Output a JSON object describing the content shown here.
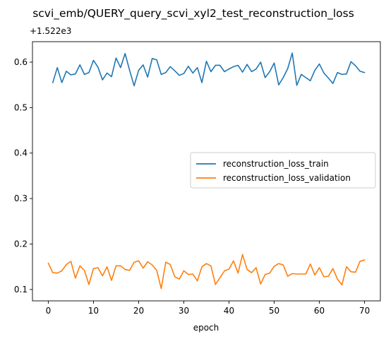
{
  "chart_data": {
    "type": "line",
    "title": "scvi_emb/QUERY_query_scvi_xyl2_test_reconstruction_loss",
    "xlabel": "epoch",
    "ylabel": "",
    "offset_label": "+1.522e3",
    "offset_value": 1522,
    "xlim": [
      -3.5,
      73.5
    ],
    "ylim": [
      0.075,
      0.645
    ],
    "xticks": [
      0,
      10,
      20,
      30,
      40,
      50,
      60,
      70
    ],
    "yticks": [
      0.1,
      0.2,
      0.3,
      0.4,
      0.5,
      0.6
    ],
    "ytick_labels": [
      "0.1",
      "0.2",
      "0.3",
      "0.4",
      "0.5",
      "0.6"
    ],
    "grid": false,
    "legend_position": "center-right",
    "series": [
      {
        "name": "reconstruction_loss_train",
        "color": "#1f77b4",
        "x": [
          1,
          2,
          3,
          4,
          5,
          6,
          7,
          8,
          9,
          10,
          11,
          12,
          13,
          14,
          15,
          16,
          17,
          18,
          19,
          20,
          21,
          22,
          23,
          24,
          25,
          26,
          27,
          28,
          29,
          30,
          31,
          32,
          33,
          34,
          35,
          36,
          37,
          38,
          39,
          40,
          41,
          42,
          43,
          44,
          45,
          46,
          47,
          48,
          49,
          50,
          51,
          52,
          53,
          54,
          55,
          56,
          57,
          58,
          59,
          60,
          61,
          62,
          63,
          64,
          65,
          66,
          67,
          68,
          69,
          70
        ],
        "values": [
          0.555,
          0.588,
          0.555,
          0.58,
          0.572,
          0.574,
          0.594,
          0.573,
          0.577,
          0.604,
          0.589,
          0.561,
          0.576,
          0.568,
          0.609,
          0.588,
          0.619,
          0.582,
          0.548,
          0.582,
          0.594,
          0.567,
          0.608,
          0.605,
          0.573,
          0.577,
          0.59,
          0.581,
          0.571,
          0.575,
          0.591,
          0.576,
          0.588,
          0.555,
          0.602,
          0.579,
          0.593,
          0.593,
          0.579,
          0.585,
          0.59,
          0.593,
          0.578,
          0.595,
          0.579,
          0.585,
          0.6,
          0.566,
          0.579,
          0.598,
          0.55,
          0.566,
          0.586,
          0.62,
          0.549,
          0.573,
          0.566,
          0.559,
          0.582,
          0.596,
          0.576,
          0.565,
          0.553,
          0.577,
          0.573,
          0.574,
          0.601,
          0.592,
          0.58,
          0.577
        ]
      },
      {
        "name": "reconstruction_loss_validation",
        "color": "#ff7f0e",
        "x": [
          0,
          1,
          2,
          3,
          4,
          5,
          6,
          7,
          8,
          9,
          10,
          11,
          12,
          13,
          14,
          15,
          16,
          17,
          18,
          19,
          20,
          21,
          22,
          23,
          24,
          25,
          26,
          27,
          28,
          29,
          30,
          31,
          32,
          33,
          34,
          35,
          36,
          37,
          38,
          39,
          40,
          41,
          42,
          43,
          44,
          45,
          46,
          47,
          48,
          49,
          50,
          51,
          52,
          53,
          54,
          55,
          56,
          57,
          58,
          59,
          60,
          61,
          62,
          63,
          64,
          65,
          66,
          67,
          68,
          69,
          70
        ],
        "values": [
          0.158,
          0.137,
          0.136,
          0.141,
          0.155,
          0.162,
          0.125,
          0.152,
          0.142,
          0.111,
          0.146,
          0.148,
          0.13,
          0.15,
          0.12,
          0.152,
          0.152,
          0.144,
          0.142,
          0.16,
          0.163,
          0.147,
          0.161,
          0.154,
          0.142,
          0.102,
          0.16,
          0.155,
          0.128,
          0.123,
          0.141,
          0.133,
          0.134,
          0.119,
          0.15,
          0.157,
          0.152,
          0.111,
          0.126,
          0.141,
          0.145,
          0.163,
          0.136,
          0.177,
          0.144,
          0.137,
          0.148,
          0.112,
          0.133,
          0.136,
          0.151,
          0.157,
          0.154,
          0.129,
          0.135,
          0.134,
          0.134,
          0.134,
          0.156,
          0.132,
          0.148,
          0.128,
          0.129,
          0.146,
          0.123,
          0.11,
          0.15,
          0.139,
          0.138,
          0.162,
          0.165
        ]
      }
    ]
  }
}
